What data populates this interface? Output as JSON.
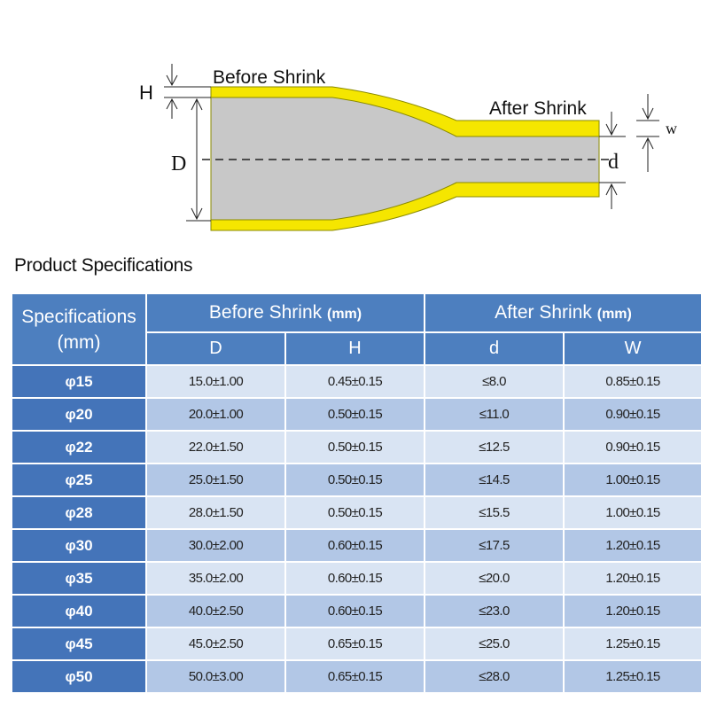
{
  "diagram": {
    "label_before": "Before Shrink",
    "label_after": "After Shrink",
    "label_H": "H",
    "label_D": "D",
    "label_d": "d",
    "label_w": "w"
  },
  "heading": "Product Specifications",
  "table": {
    "spec_header": [
      "Specifications",
      "(mm)"
    ],
    "before_group": "Before Shrink",
    "after_group": "After Shrink",
    "unit": "(mm)",
    "sub_headers": [
      "D",
      "H",
      "d",
      "W"
    ],
    "rows": [
      {
        "spec": "φ15",
        "D": "15.0±1.00",
        "H": "0.45±0.15",
        "d": "≤8.0",
        "W": "0.85±0.15"
      },
      {
        "spec": "φ20",
        "D": "20.0±1.00",
        "H": "0.50±0.15",
        "d": "≤11.0",
        "W": "0.90±0.15"
      },
      {
        "spec": "φ22",
        "D": "22.0±1.50",
        "H": "0.50±0.15",
        "d": "≤12.5",
        "W": "0.90±0.15"
      },
      {
        "spec": "φ25",
        "D": "25.0±1.50",
        "H": "0.50±0.15",
        "d": "≤14.5",
        "W": "1.00±0.15"
      },
      {
        "spec": "φ28",
        "D": "28.0±1.50",
        "H": "0.50±0.15",
        "d": "≤15.5",
        "W": "1.00±0.15"
      },
      {
        "spec": "φ30",
        "D": "30.0±2.00",
        "H": "0.60±0.15",
        "d": "≤17.5",
        "W": "1.20±0.15"
      },
      {
        "spec": "φ35",
        "D": "35.0±2.00",
        "H": "0.60±0.15",
        "d": "≤20.0",
        "W": "1.20±0.15"
      },
      {
        "spec": "φ40",
        "D": "40.0±2.50",
        "H": "0.60±0.15",
        "d": "≤23.0",
        "W": "1.20±0.15"
      },
      {
        "spec": "φ45",
        "D": "45.0±2.50",
        "H": "0.65±0.15",
        "d": "≤25.0",
        "W": "1.25±0.15"
      },
      {
        "spec": "φ50",
        "D": "50.0±3.00",
        "H": "0.65±0.15",
        "d": "≤28.0",
        "W": "1.25±0.15"
      }
    ]
  },
  "colors": {
    "header_blue": "#4d7fbf",
    "rowhead_blue": "#4474b9",
    "row_light": "#d9e4f3",
    "row_dark": "#b2c7e6",
    "tube_gray": "#c8c8c8",
    "tube_yellow": "#f5e600"
  }
}
